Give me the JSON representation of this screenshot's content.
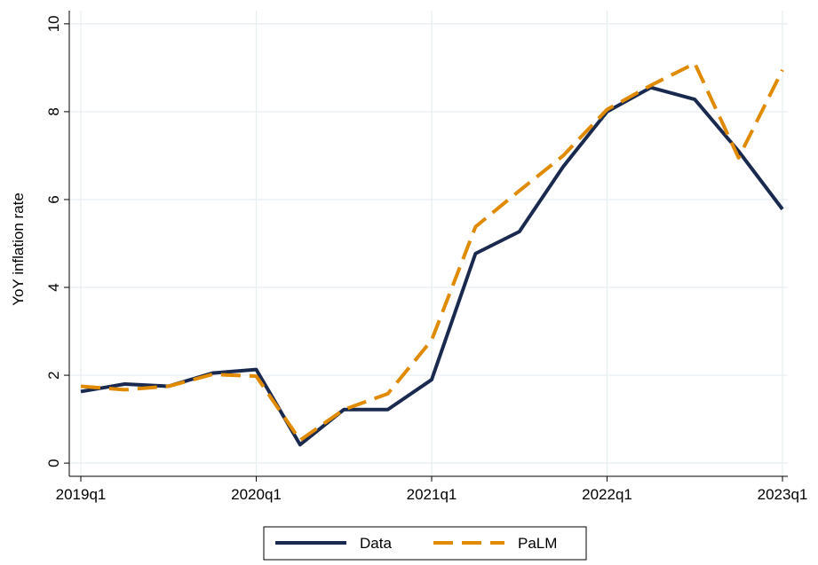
{
  "chart_data": {
    "type": "line",
    "y_label": "YoY inflation rate",
    "categories": [
      "2019q1",
      null,
      null,
      null,
      "2020q1",
      null,
      null,
      null,
      "2021q1",
      null,
      null,
      null,
      "2022q1",
      null,
      null,
      null,
      "2023q1"
    ],
    "series": [
      {
        "name": "Data",
        "color": "#1a2a4f",
        "dashed": false,
        "values": [
          1.63,
          1.8,
          1.75,
          2.05,
          2.13,
          0.42,
          1.22,
          1.22,
          1.9,
          4.77,
          5.27,
          6.75,
          8.0,
          8.55,
          8.28,
          7.1,
          5.78
        ]
      },
      {
        "name": "PaLM",
        "color": "#e08a00",
        "dashed": true,
        "values": [
          1.75,
          1.67,
          1.75,
          2.02,
          1.98,
          0.52,
          1.22,
          1.58,
          2.8,
          5.38,
          6.2,
          7.0,
          8.05,
          8.6,
          9.1,
          6.95,
          8.95
        ]
      }
    ],
    "ylim": [
      -0.3,
      10.3
    ],
    "yticks": [
      0,
      2,
      4,
      6,
      8,
      10
    ],
    "grid": true,
    "legend": "bottom"
  }
}
